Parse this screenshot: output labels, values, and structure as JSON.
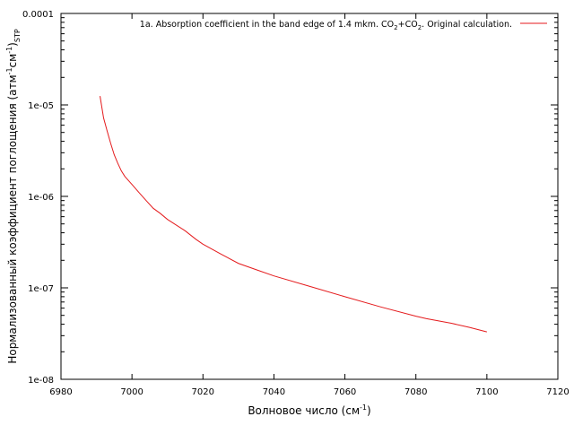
{
  "chart_data": {
    "type": "line",
    "xlabel": "Волновое число (см",
    "xlabel_sup": "-1",
    "xlabel_end": ")",
    "ylabel_parts": [
      "Нормализованный коэффициент поглощения (атм",
      "-1",
      "см",
      "-1",
      ")",
      "STP"
    ],
    "xlim": [
      6980,
      7120
    ],
    "ylim": [
      1e-08,
      0.0001
    ],
    "yscale": "log",
    "xticks": [
      "6980",
      "7000",
      "7020",
      "7040",
      "7060",
      "7080",
      "7100",
      "7120"
    ],
    "yticks": [
      "1e-08",
      "1e-07",
      "1e-06",
      "1e-05",
      "0.0001"
    ],
    "grid": false,
    "legend_position": "top-right",
    "series": [
      {
        "name": "1a. Absorption coefficient in the band edge of 1.4 mkm. CO2+CO2. Original calculation.",
        "name_parts": [
          "1a. Absorption coefficient in the band edge of 1.4 mkm. CO",
          "2",
          "+CO",
          "2",
          ". Original calculation."
        ],
        "color": "#e41a1c",
        "x": [
          6991,
          6992,
          6993,
          6994,
          6995,
          6996,
          6997,
          6998,
          7000,
          7002,
          7004,
          7006,
          7008,
          7010,
          7015,
          7018,
          7020,
          7025,
          7030,
          7035,
          7040,
          7050,
          7060,
          7070,
          7080,
          7083,
          7090,
          7095,
          7100
        ],
        "y": [
          1.25e-05,
          7.2e-06,
          5.2e-06,
          3.8e-06,
          2.85e-06,
          2.3e-06,
          1.9e-06,
          1.65e-06,
          1.35e-06,
          1.1e-06,
          9e-07,
          7.4e-07,
          6.5e-07,
          5.6e-07,
          4.2e-07,
          3.4e-07,
          3e-07,
          2.35e-07,
          1.85e-07,
          1.58e-07,
          1.35e-07,
          1.04e-07,
          8e-08,
          6.2e-08,
          4.9e-08,
          4.6e-08,
          4.1e-08,
          3.7e-08,
          3.3e-08
        ]
      }
    ]
  }
}
